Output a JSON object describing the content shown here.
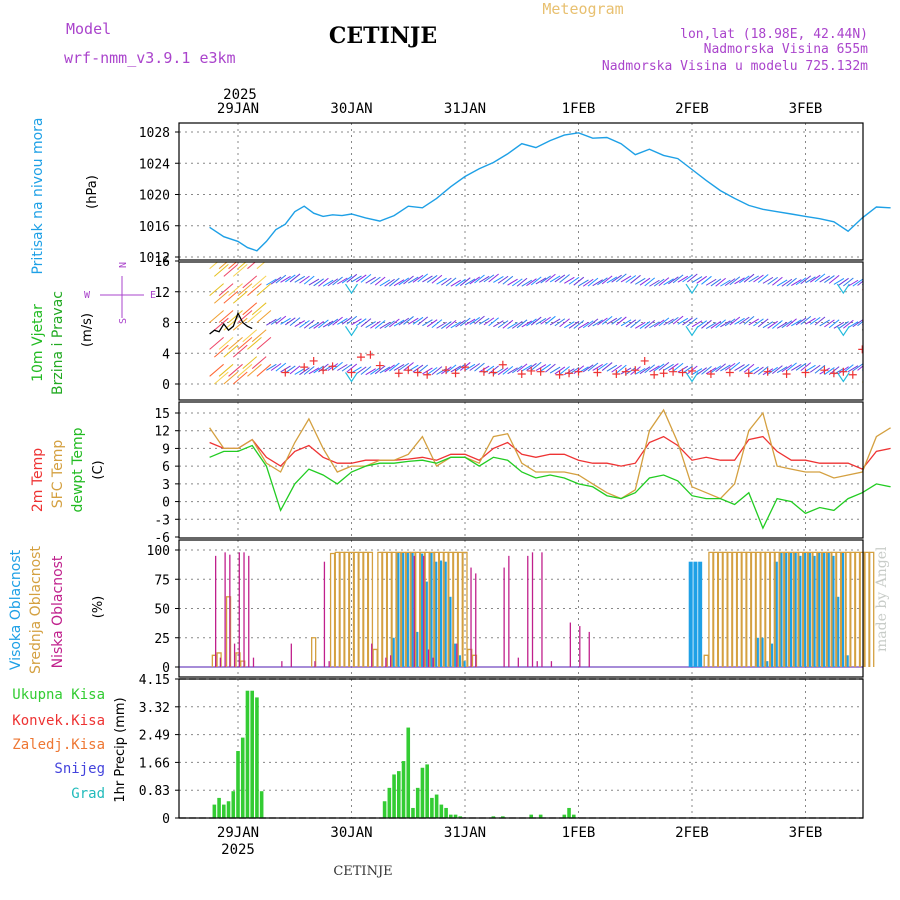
{
  "header": {
    "model_label": "Model",
    "model_name": "wrf-nmm_v3.9.1 e3km",
    "station": "CETINJE",
    "product": "Meteogram",
    "lonlat": "lon,lat (18.98E, 42.44N)",
    "altitude": "Nadmorska Visina 655m",
    "model_altitude": "Nadmorska Visina u modelu 725.132m",
    "footer_station": "CETINJE",
    "credit": "made by Angel"
  },
  "colors": {
    "pressure": "#1ea0e6",
    "wind_title": "#22bb22",
    "wind_sub": "#22aa22",
    "wind_compass": "#aa44cc",
    "temp2m": "#ee3333",
    "sfc": "#d4a040",
    "dewpt": "#22cc22",
    "visoka": "#1ea0e6",
    "srednja": "#d4a040",
    "niska": "#c0208c",
    "precip_total": "#33cc33",
    "precip_conv": "#ee3333",
    "precip_strat": "#ee7733",
    "snow": "#4444dd",
    "grad": "#22bbbb",
    "header_purple": "#aa44cc",
    "header_gold": "#e8c070"
  },
  "time_axis": {
    "year": "2025",
    "days": [
      "29JAN",
      "30JAN",
      "31JAN",
      "1FEB",
      "2FEB",
      "3FEB"
    ],
    "start_hour": -6,
    "end_hour": 138
  },
  "panels": {
    "pressure": {
      "title": "Pritisak na nivou mora",
      "unit": "(hPa)"
    },
    "wind": {
      "title1": "10m Vjetar",
      "title2": "Brzina i Pravac",
      "unit": "(m/s)"
    },
    "temp": {
      "label_2m": "2m Temp",
      "label_sfc": "SFC Temp",
      "label_dew": "dewpt Temp",
      "unit": "(C)"
    },
    "cloud": {
      "label_visoka": "Visoka Oblacnost",
      "label_srednja": "Srednja Oblacnost",
      "label_niska": "Niska Oblacnost",
      "unit": "(%)"
    },
    "precip": {
      "legend": [
        "Ukupna Kisa",
        "Konvek.Kisa",
        "Zaledj.Kisa",
        "Snijeg",
        "Grad"
      ],
      "unit": "1hr Precip (mm)"
    }
  },
  "chart_data": [
    {
      "type": "line",
      "name": "Sea level pressure",
      "ylabel": "Pritisak na nivou mora (hPa)",
      "ylim": [
        1012,
        1029
      ],
      "yticks": [
        "1012",
        "1016",
        "1020",
        "1024",
        "1028"
      ],
      "x_hours": [
        -6,
        -3,
        0,
        2,
        4,
        6,
        8,
        10,
        12,
        14,
        16,
        18,
        20,
        22,
        24,
        27,
        30,
        33,
        36,
        39,
        42,
        45,
        48,
        51,
        54,
        57,
        60,
        63,
        66,
        69,
        72,
        75,
        78,
        81,
        84,
        87,
        90,
        93,
        96,
        99,
        102,
        105,
        108,
        111,
        114,
        117,
        120,
        123,
        126,
        129,
        132,
        135,
        138
      ],
      "values": [
        1015.8,
        1014.6,
        1014.0,
        1013.2,
        1012.8,
        1014.0,
        1015.5,
        1016.2,
        1017.8,
        1018.5,
        1017.6,
        1017.2,
        1017.4,
        1017.3,
        1017.5,
        1017.0,
        1016.6,
        1017.3,
        1018.5,
        1018.3,
        1019.5,
        1021.0,
        1022.3,
        1023.3,
        1024.1,
        1025.2,
        1026.5,
        1026.0,
        1026.9,
        1027.6,
        1027.9,
        1027.2,
        1027.3,
        1026.5,
        1025.1,
        1025.8,
        1025.0,
        1024.6,
        1023.2,
        1021.8,
        1020.5,
        1019.5,
        1018.6,
        1018.1,
        1017.8,
        1017.5,
        1017.2,
        1016.9,
        1016.5,
        1015.3,
        1017.0,
        1018.4,
        1018.3
      ],
      "series_color": "#1ea0e6"
    },
    {
      "type": "line",
      "name": "10m wind speed and direction",
      "ylabel": "10m Vjetar Brzina i Pravac (m/s)",
      "ylim": [
        -1,
        16
      ],
      "yticks": [
        "0",
        "4",
        "8",
        "12",
        "16"
      ],
      "compass": {
        "n": "N",
        "w": "W",
        "e": "E",
        "s": "S"
      },
      "speed_x_hours": [
        -6,
        -5,
        -4,
        -3,
        -2,
        -1,
        0,
        1,
        2,
        3
      ],
      "speed_values": [
        6.5,
        7.0,
        6.8,
        7.8,
        7.0,
        7.5,
        9.2,
        8.0,
        7.5,
        7.2
      ],
      "speed_tail_x_hours": [
        132,
        134,
        136,
        138
      ],
      "speed_tail_values": [
        7.0,
        7.5,
        8.3,
        8.2
      ],
      "gust_x_hours": [
        10,
        14,
        16,
        18,
        20,
        24,
        26,
        28,
        30,
        34,
        36,
        38,
        40,
        44,
        46,
        48,
        52,
        54,
        56,
        60,
        62,
        64,
        68,
        70,
        72,
        76,
        80,
        82,
        84,
        86,
        88,
        90,
        92,
        94,
        96,
        100,
        104,
        108,
        112,
        116,
        120,
        124,
        126,
        128,
        130,
        132,
        134,
        136,
        138
      ],
      "gust_values": [
        1.5,
        2.2,
        3.0,
        1.8,
        2.3,
        1.5,
        3.5,
        3.8,
        2.4,
        1.4,
        1.8,
        1.5,
        1.2,
        1.8,
        1.4,
        2.2,
        1.6,
        1.5,
        2.5,
        1.3,
        1.7,
        1.6,
        1.2,
        1.4,
        1.6,
        1.5,
        1.3,
        1.6,
        1.8,
        3.0,
        1.2,
        1.4,
        1.6,
        1.5,
        1.7,
        1.3,
        1.5,
        1.4,
        1.6,
        1.3,
        1.5,
        1.8,
        1.4,
        1.6,
        1.2,
        4.5,
        7.5,
        9.0,
        8.5
      ],
      "barb_rows_ms": [
        13,
        7.5,
        1.5
      ]
    },
    {
      "type": "line",
      "name": "Temperatures",
      "ylabel": "Temp (C)",
      "ylim": [
        -6,
        16
      ],
      "yticks": [
        "-6",
        "-3",
        "0",
        "3",
        "6",
        "9",
        "12",
        "15"
      ],
      "x_hours": [
        -6,
        -3,
        0,
        3,
        6,
        9,
        12,
        15,
        18,
        21,
        24,
        27,
        30,
        33,
        36,
        39,
        42,
        45,
        48,
        51,
        54,
        57,
        60,
        63,
        66,
        69,
        72,
        75,
        78,
        81,
        84,
        87,
        90,
        93,
        96,
        99,
        102,
        105,
        108,
        111,
        114,
        117,
        120,
        123,
        126,
        129,
        132,
        135,
        138
      ],
      "series": [
        {
          "name": "2m Temp",
          "color": "#ee3333",
          "values": [
            10.0,
            9.0,
            9.0,
            10.5,
            7.5,
            6.0,
            8.5,
            9.5,
            7.5,
            6.5,
            6.5,
            7.0,
            7.0,
            7.0,
            7.2,
            7.5,
            7.0,
            8.0,
            8.0,
            7.0,
            9.0,
            10.0,
            8.0,
            7.5,
            8.0,
            8.0,
            7.0,
            6.5,
            6.5,
            6.0,
            6.5,
            10.0,
            11.0,
            9.5,
            7.0,
            7.5,
            7.0,
            7.0,
            10.5,
            11.0,
            8.5,
            7.0,
            7.0,
            6.5,
            6.5,
            6.5,
            5.5,
            8.5,
            9.0
          ]
        },
        {
          "name": "SFC Temp",
          "color": "#d4a040",
          "values": [
            12.5,
            9.0,
            9.0,
            10.5,
            6.5,
            5.0,
            10.0,
            14.0,
            9.0,
            5.0,
            6.0,
            6.0,
            7.0,
            7.0,
            8.0,
            11.0,
            6.0,
            7.5,
            7.5,
            6.5,
            11.0,
            11.5,
            6.5,
            5.0,
            5.0,
            5.0,
            4.5,
            3.0,
            1.5,
            0.5,
            2.0,
            12.0,
            15.5,
            10.0,
            2.5,
            1.5,
            0.5,
            3.0,
            12.0,
            15.0,
            6.0,
            5.5,
            5.0,
            5.0,
            4.0,
            4.5,
            5.0,
            11.0,
            12.5
          ]
        },
        {
          "name": "dewpt Temp",
          "color": "#22cc22",
          "values": [
            7.5,
            8.5,
            8.5,
            9.5,
            6.0,
            -1.5,
            3.0,
            5.5,
            4.5,
            3.0,
            5.0,
            6.0,
            6.5,
            6.5,
            6.8,
            7.0,
            6.5,
            7.5,
            7.5,
            6.0,
            7.5,
            7.0,
            5.0,
            4.0,
            4.5,
            4.0,
            3.0,
            2.5,
            1.0,
            0.5,
            1.5,
            4.0,
            4.5,
            3.5,
            1.0,
            0.5,
            0.5,
            -0.5,
            1.5,
            -4.5,
            0.5,
            0.0,
            -2.0,
            -1.0,
            -1.5,
            0.5,
            1.5,
            3.0,
            2.5
          ]
        }
      ]
    },
    {
      "type": "bar",
      "name": "Cloud cover",
      "ylabel": "Oblacnost (%)",
      "ylim": [
        0,
        100
      ],
      "yticks": [
        "0",
        "25",
        "50",
        "75",
        "100"
      ],
      "series": [
        {
          "name": "Visoka Oblacnost",
          "color": "#1ea0e6",
          "x_hours": [
            33,
            34,
            35,
            36,
            37,
            38,
            39,
            40,
            41,
            42,
            43,
            44,
            45,
            46,
            47,
            48,
            96,
            97,
            98,
            110,
            111,
            112,
            113,
            114,
            115,
            116,
            117,
            118,
            119,
            120,
            121,
            122,
            123,
            124,
            125,
            126,
            127,
            128,
            129
          ],
          "values": [
            25,
            98,
            98,
            98,
            98,
            30,
            97,
            73,
            98,
            90,
            91,
            90,
            60,
            20,
            10,
            5,
            90,
            90,
            90,
            25,
            25,
            5,
            20,
            90,
            98,
            98,
            98,
            98,
            95,
            98,
            98,
            95,
            98,
            98,
            98,
            95,
            60,
            98,
            10
          ]
        },
        {
          "name": "Srednja Oblacnost",
          "color": "#d4a040",
          "x_hours": [
            -5,
            -4,
            -2,
            0,
            1,
            16,
            20,
            21,
            22,
            23,
            24,
            25,
            26,
            27,
            28,
            29,
            30,
            31,
            32,
            33,
            34,
            35,
            36,
            37,
            38,
            39,
            40,
            41,
            42,
            43,
            44,
            45,
            46,
            47,
            48,
            49,
            50,
            99,
            100,
            101,
            102,
            103,
            104,
            105,
            106,
            107,
            108,
            109,
            110,
            111,
            112,
            113,
            114,
            115,
            116,
            117,
            118,
            119,
            120,
            121,
            122,
            123,
            124,
            125,
            126,
            127,
            128,
            129,
            130,
            131,
            132,
            133,
            134
          ],
          "values": [
            10,
            12,
            60,
            12,
            5,
            25,
            97,
            98,
            98,
            98,
            98,
            98,
            98,
            98,
            98,
            15,
            98,
            98,
            98,
            98,
            98,
            98,
            98,
            98,
            98,
            98,
            98,
            98,
            98,
            98,
            98,
            98,
            98,
            98,
            98,
            15,
            10,
            10,
            98,
            98,
            98,
            98,
            98,
            98,
            98,
            98,
            98,
            98,
            98,
            98,
            98,
            98,
            98,
            98,
            98,
            98,
            98,
            98,
            98,
            98,
            98,
            98,
            98,
            98,
            98,
            98,
            98,
            98,
            98,
            98,
            98,
            98,
            98
          ]
        },
        {
          "name": "Niska Oblacnost",
          "color": "#c0208c",
          "x_hours": [
            -5,
            -4,
            -3,
            -2,
            -1,
            0,
            1,
            2,
            3,
            9,
            11,
            16,
            18,
            19,
            28,
            31,
            32,
            37,
            39,
            40,
            41,
            46,
            49,
            50,
            56,
            57,
            59,
            61,
            62,
            63,
            64,
            66,
            70,
            72,
            74
          ],
          "values": [
            95,
            8,
            98,
            96,
            20,
            98,
            98,
            95,
            8,
            5,
            20,
            5,
            90,
            5,
            20,
            8,
            10,
            95,
            95,
            15,
            8,
            20,
            85,
            80,
            85,
            95,
            8,
            95,
            98,
            5,
            98,
            5,
            38,
            35,
            30
          ]
        }
      ]
    },
    {
      "type": "bar",
      "name": "1hr Precipitation",
      "ylabel": "1hr Precip (mm)",
      "ylim": [
        0,
        4.15
      ],
      "yticks": [
        "0",
        "0.83",
        "1.66",
        "2.49",
        "3.32",
        "4.15"
      ],
      "series": [
        {
          "name": "Ukupna Kisa",
          "color": "#33cc33",
          "x_hours": [
            -5,
            -4,
            -3,
            -2,
            -1,
            0,
            1,
            2,
            3,
            4,
            5,
            31,
            32,
            33,
            34,
            35,
            36,
            37,
            38,
            39,
            40,
            41,
            42,
            43,
            44,
            45,
            46,
            47,
            54,
            56,
            62,
            64,
            69,
            70,
            71
          ],
          "values": [
            0.4,
            0.6,
            0.4,
            0.5,
            0.8,
            2.0,
            2.4,
            3.8,
            3.8,
            3.6,
            0.8,
            0.5,
            0.9,
            1.3,
            1.4,
            1.7,
            2.7,
            0.3,
            0.9,
            1.5,
            1.6,
            0.6,
            0.7,
            0.4,
            0.3,
            0.1,
            0.1,
            0.05,
            0.05,
            0.05,
            0.1,
            0.1,
            0.1,
            0.3,
            0.1
          ]
        },
        {
          "name": "Konvek.Kisa",
          "color": "#ee3333",
          "x_hours": [],
          "values": []
        },
        {
          "name": "Zaledj.Kisa",
          "color": "#ee7733",
          "x_hours": [],
          "values": []
        },
        {
          "name": "Snijeg",
          "color": "#4444dd",
          "x_hours": [],
          "values": []
        },
        {
          "name": "Grad",
          "color": "#22bbbb",
          "x_hours": [],
          "values": []
        }
      ]
    }
  ]
}
